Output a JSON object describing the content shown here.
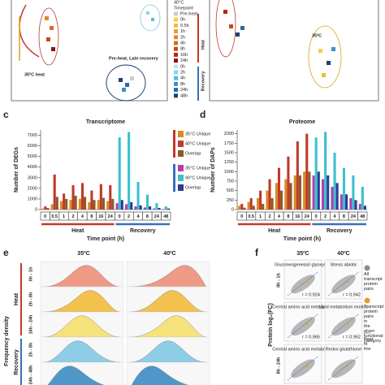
{
  "chart_data": [
    {
      "type": "bar",
      "panel": "c",
      "title": "Transcriptome",
      "y_label": "Number of DEGs",
      "x_label": "Time point (h)",
      "categories": [
        "0",
        "0.5",
        "1",
        "2",
        "4",
        "8",
        "16",
        "24",
        "0",
        "2",
        "4",
        "8",
        "24",
        "48"
      ],
      "ylim": [
        0,
        7500
      ],
      "yticks": [
        0,
        1000,
        2000,
        3000,
        4000,
        5000,
        6000,
        7000
      ],
      "legend": true,
      "groups": [
        {
          "name": "Heat",
          "color": "#c0392b",
          "series": [
            {
              "name": "35°C Unique",
              "color": "#d98c1f",
              "values": [
                100,
                500,
                800,
                900,
                1000,
                700,
                900,
                800,
                null,
                null,
                null,
                null,
                null,
                null
              ]
            },
            {
              "name": "40°C Unique",
              "color": "#c0392b",
              "values": [
                300,
                3300,
                1500,
                2300,
                2500,
                1800,
                2400,
                2300,
                null,
                null,
                null,
                null,
                null,
                null
              ]
            },
            {
              "name": "Overlap",
              "color": "#8b5a2b",
              "values": [
                150,
                1200,
                1000,
                1300,
                1200,
                900,
                1100,
                1000,
                null,
                null,
                null,
                null,
                null,
                null
              ]
            }
          ]
        },
        {
          "name": "Recovery",
          "color": "#3a6fb5",
          "series": [
            {
              "name": "35°C Unique",
              "color": "#b03fb0",
              "values": [
                null,
                null,
                null,
                null,
                null,
                null,
                null,
                null,
                600,
                500,
                300,
                200,
                100,
                50
              ]
            },
            {
              "name": "40°C Unique",
              "color": "#3cc0d0",
              "values": [
                null,
                null,
                null,
                null,
                null,
                null,
                null,
                null,
                6800,
                7300,
                2600,
                1400,
                600,
                300
              ]
            },
            {
              "name": "Overlap",
              "color": "#2b3d8f",
              "values": [
                null,
                null,
                null,
                null,
                null,
                null,
                null,
                null,
                900,
                700,
                400,
                300,
                150,
                100
              ]
            }
          ]
        }
      ]
    },
    {
      "type": "bar",
      "panel": "d",
      "title": "Proteome",
      "y_label": "Number of DAPs",
      "x_label": "Time point (h)",
      "categories": [
        "0",
        "0.5",
        "1",
        "2",
        "4",
        "8",
        "16",
        "24",
        "0",
        "2",
        "4",
        "8",
        "24",
        "48"
      ],
      "ylim": [
        0,
        2100
      ],
      "yticks": [
        0,
        250,
        500,
        750,
        1000,
        1250,
        1500,
        1750,
        2000
      ],
      "legend": false,
      "groups": [
        {
          "name": "Heat",
          "color": "#c0392b",
          "series": [
            {
              "name": "35°C Unique",
              "color": "#d98c1f",
              "values": [
                100,
                200,
                300,
                500,
                700,
                800,
                900,
                1000,
                null,
                null,
                null,
                null,
                null,
                null
              ]
            },
            {
              "name": "40°C Unique",
              "color": "#c0392b",
              "values": [
                150,
                300,
                500,
                800,
                1100,
                1400,
                1800,
                2000,
                null,
                null,
                null,
                null,
                null,
                null
              ]
            },
            {
              "name": "Overlap",
              "color": "#8b5a2b",
              "values": [
                50,
                100,
                150,
                300,
                500,
                700,
                900,
                1000,
                null,
                null,
                null,
                null,
                null,
                null
              ]
            }
          ]
        },
        {
          "name": "Recovery",
          "color": "#3a6fb5",
          "series": [
            {
              "name": "35°C Unique",
              "color": "#b03fb0",
              "values": [
                null,
                null,
                null,
                null,
                null,
                null,
                null,
                null,
                900,
                800,
                600,
                400,
                300,
                150
              ]
            },
            {
              "name": "40°C Unique",
              "color": "#3cc0d0",
              "values": [
                null,
                null,
                null,
                null,
                null,
                null,
                null,
                null,
                1900,
                2050,
                1500,
                1100,
                900,
                600
              ]
            },
            {
              "name": "Overlap",
              "color": "#2b3d8f",
              "values": [
                null,
                null,
                null,
                null,
                null,
                null,
                null,
                null,
                1000,
                900,
                700,
                400,
                250,
                100
              ]
            }
          ]
        }
      ]
    }
  ],
  "pca": {
    "top_label": "40°C",
    "annotations": [
      "35ºC heat",
      "Pre-heat, Late recovery",
      "35ºC"
    ],
    "legend_title": "Timepoint",
    "items": [
      {
        "label": "Pre-heat",
        "color": "#cccccc"
      },
      {
        "label": "0h",
        "color": "#f2d04a"
      },
      {
        "label": "0.5h",
        "color": "#eebc3a"
      },
      {
        "label": "1h",
        "color": "#e8a030"
      },
      {
        "label": "2h",
        "color": "#e3872a"
      },
      {
        "label": "4h",
        "color": "#d86a24"
      },
      {
        "label": "8h",
        "color": "#c9481e"
      },
      {
        "label": "16h",
        "color": "#b3261a"
      },
      {
        "label": "24h",
        "color": "#8c1414"
      },
      {
        "label": "0h",
        "color": "#bfe6f2"
      },
      {
        "label": "2h",
        "color": "#90d2ea"
      },
      {
        "label": "4h",
        "color": "#5fb7de"
      },
      {
        "label": "8h",
        "color": "#3a93c8"
      },
      {
        "label": "24h",
        "color": "#2a6aa8"
      },
      {
        "label": "48h",
        "color": "#1d4274"
      }
    ],
    "groups": [
      {
        "name": "Heat",
        "color": "#c0392b"
      },
      {
        "name": "Recovery",
        "color": "#3a6fb5"
      }
    ]
  },
  "density": {
    "panel": "e",
    "columns": [
      "35ºC",
      "40ºC"
    ],
    "y_label": "Frequency density",
    "rows": [
      {
        "label": "0h - 1h",
        "color": "#ef9a86"
      },
      {
        "label": "2h - 8h",
        "color": "#f2c14e"
      },
      {
        "label": "16h - 24h",
        "color": "#f6e27a"
      },
      {
        "label": "2h - 8h",
        "color": "#8fcde6"
      },
      {
        "label": "24h - 48h",
        "color": "#4f97c9"
      }
    ],
    "groups": [
      {
        "name": "Heat",
        "color": "#c0392b"
      },
      {
        "name": "Recovery",
        "color": "#3a6fb5"
      }
    ]
  },
  "correlation": {
    "panel": "f",
    "columns": [
      "35ºC",
      "40ºC"
    ],
    "y_label": "Protein log₂(FC)",
    "row_labels": [
      {
        "label": "0h - 1h",
        "color": "#c0392b"
      },
      {
        "label": "8h - 24h",
        "color": "#c0392b"
      }
    ],
    "panels": [
      {
        "title": "Gluconeogenesis/ glyoxylate",
        "r": "r = 0.924"
      },
      {
        "title": "Stress abiotic",
        "r": "r = 0.942"
      },
      {
        "title": "Central amino acid metabolism",
        "r": "r = 0.965"
      },
      {
        "title": "Lipid metabolism exotics",
        "r": "r = 0.952"
      },
      {
        "title": "Central amino acid metabolism"
      },
      {
        "title": "Redox glutathione"
      }
    ],
    "legend": [
      "All transcript protein pairs",
      "Transcript protein pairs in the given functional category",
      "Best fit line"
    ]
  }
}
